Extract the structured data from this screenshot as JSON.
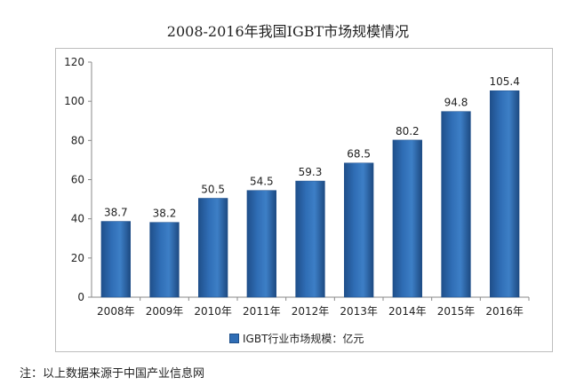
{
  "chart_data": {
    "type": "bar",
    "title": "2008-2016年我国IGBT市场规模情况",
    "categories": [
      "2008年",
      "2009年",
      "2010年",
      "2011年",
      "2012年",
      "2013年",
      "2014年",
      "2015年",
      "2016年"
    ],
    "series": [
      {
        "name": "IGBT行业市场规模：亿元",
        "values": [
          38.7,
          38.2,
          50.5,
          54.5,
          59.3,
          68.5,
          80.2,
          94.8,
          105.4
        ]
      }
    ],
    "ylim": [
      0,
      120
    ],
    "yticks": [
      0,
      20,
      40,
      60,
      80,
      100,
      120
    ],
    "grid": false,
    "legend_position": "bottom",
    "bar_color": "#2f6db5"
  },
  "note": "注：以上数据来源于中国产业信息网"
}
